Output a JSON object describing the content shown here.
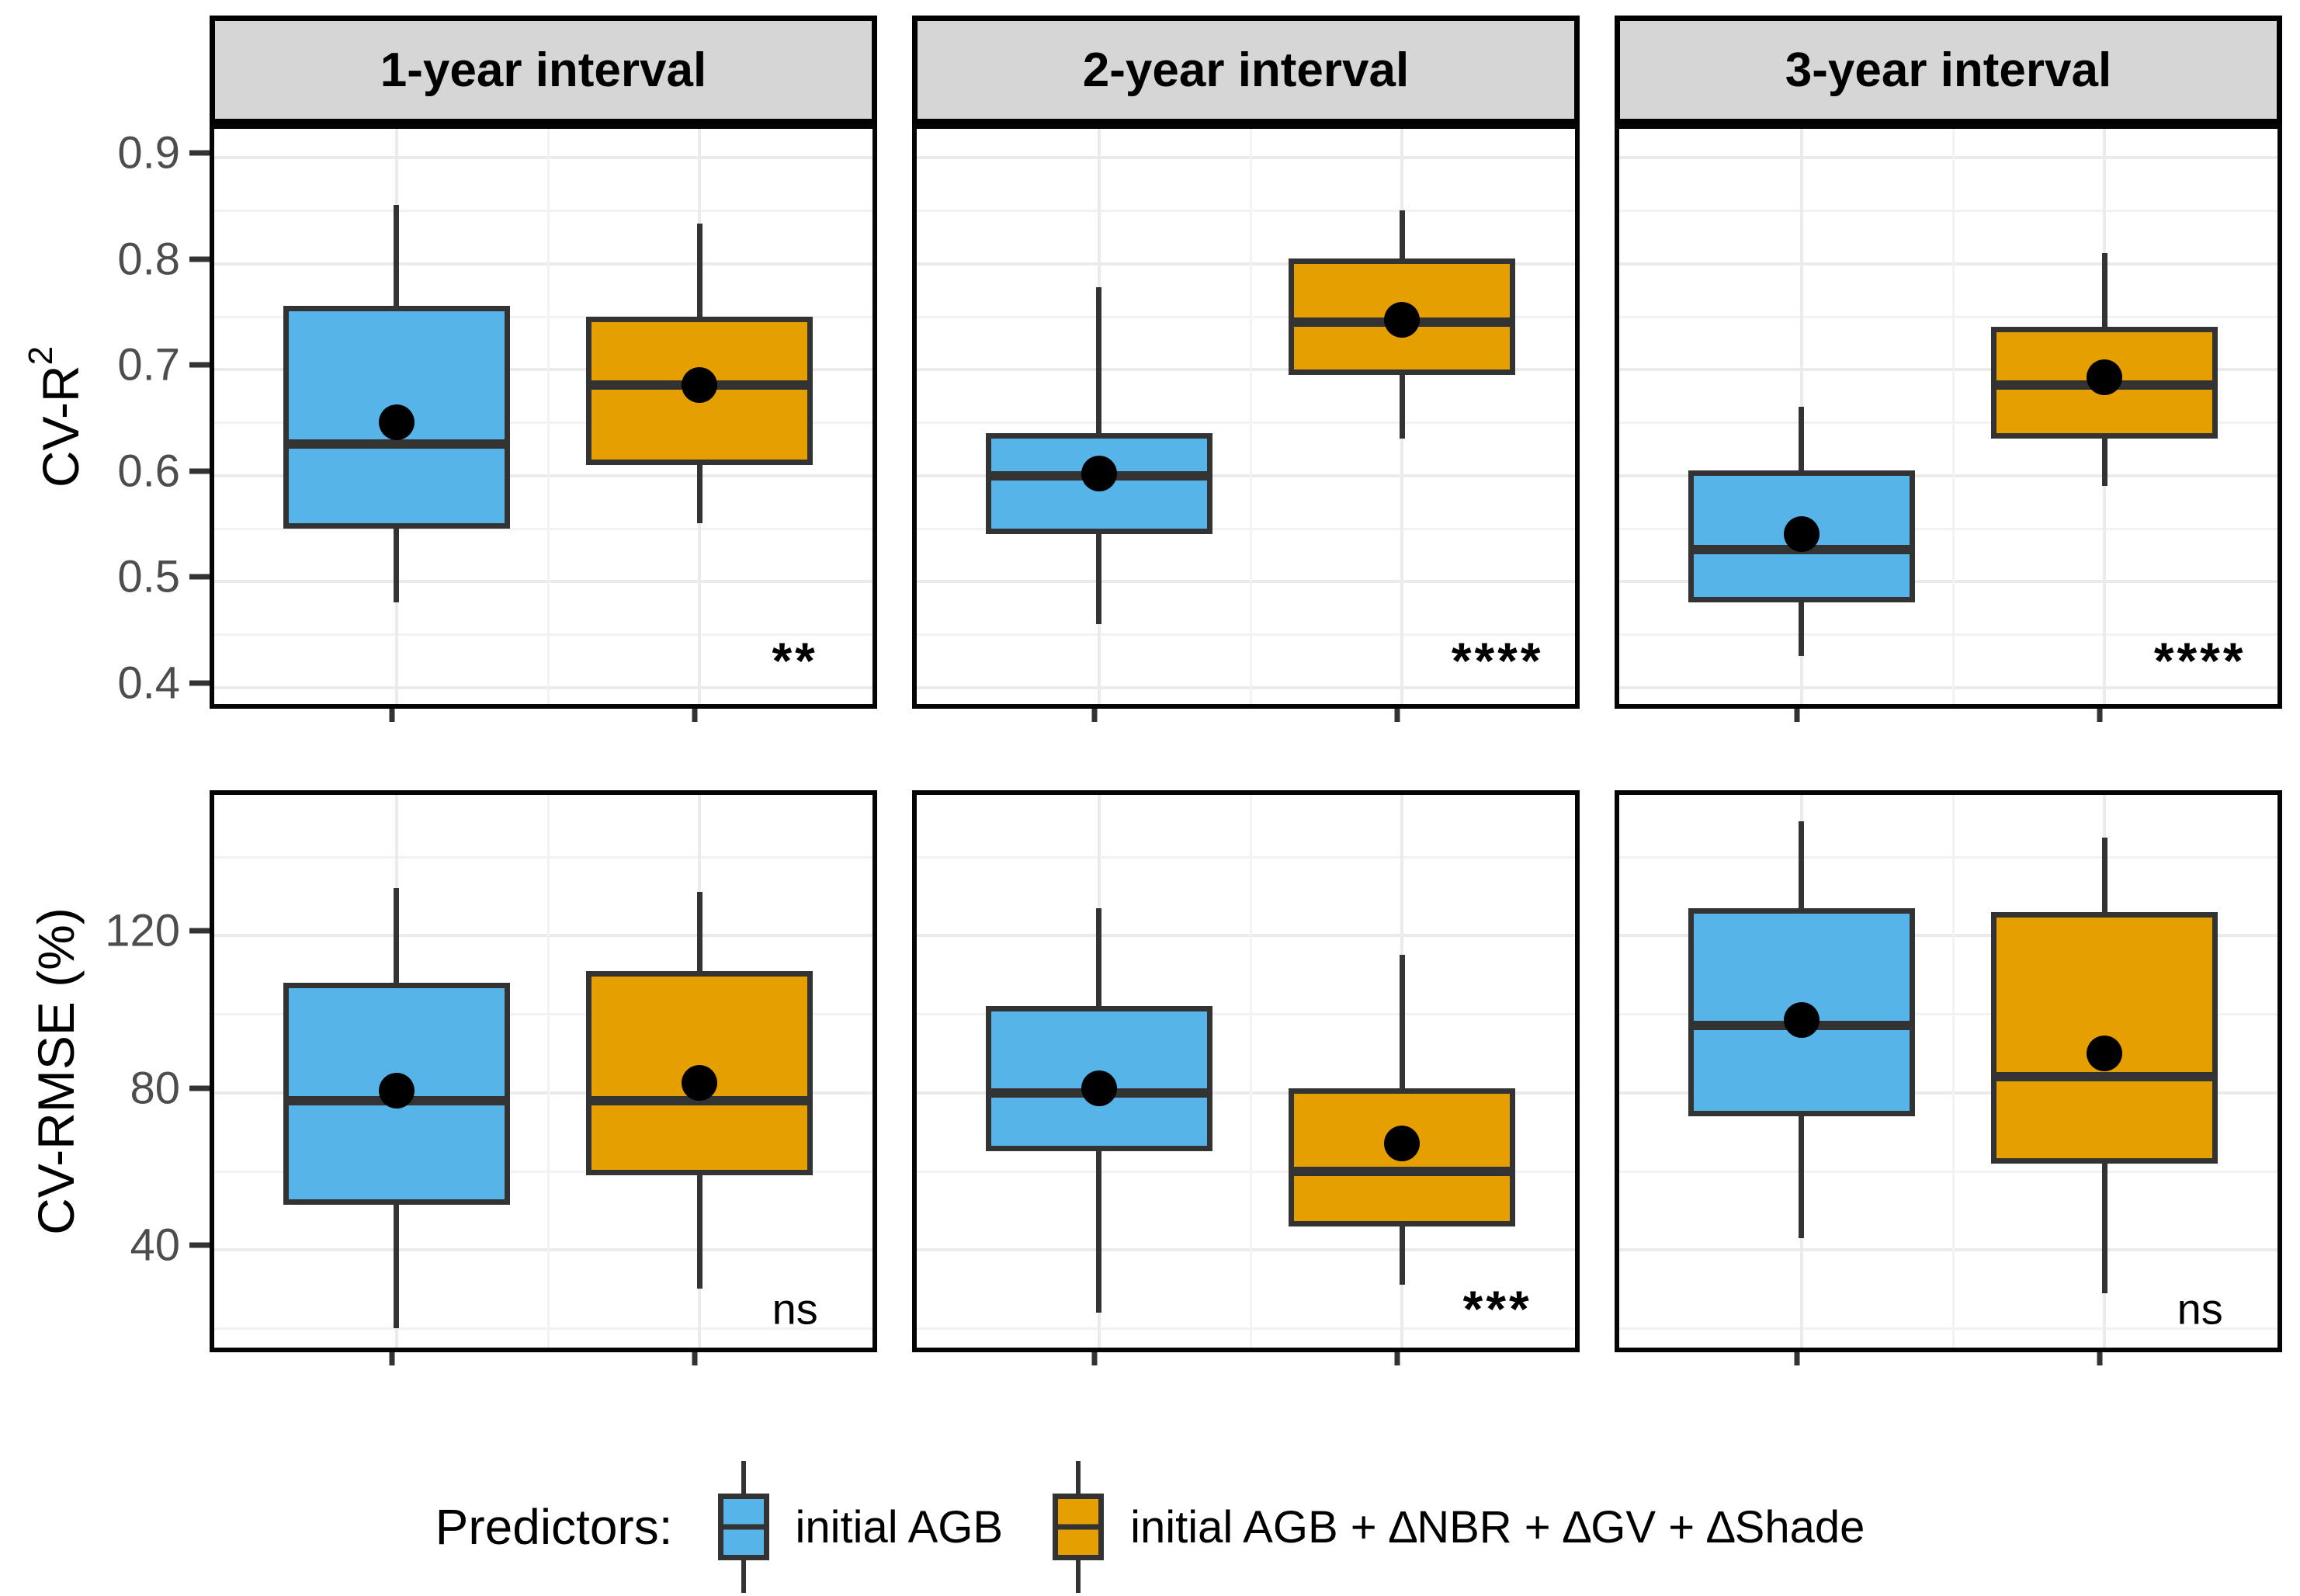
{
  "chart_data": {
    "type": "boxplot",
    "title": "",
    "grid": "on",
    "legend_position": "bottom",
    "facets": [
      "1-year interval",
      "2-year interval",
      "3-year interval"
    ],
    "series": [
      {
        "name": "initial AGB",
        "color": "#56B4E9"
      },
      {
        "name": "initial AGB + ∆NBR + ∆GV + ∆Shade",
        "color": "#E69F00"
      }
    ],
    "axes": {
      "top": {
        "label_base": "CV-R",
        "label_sup": "2",
        "ticks": [
          0.9,
          0.8,
          0.7,
          0.6,
          0.5,
          0.4
        ],
        "minor_ticks": [
          0.85,
          0.75,
          0.65,
          0.55,
          0.45
        ],
        "domain_top": 0.9271,
        "domain_bottom": 0.3755,
        "sig_value": 0.425
      },
      "bottom": {
        "label": "CV-RMSE (%)",
        "ticks": [
          120,
          80,
          40
        ],
        "minor_ticks": [
          140,
          100,
          60,
          20
        ],
        "domain_top": 155.8,
        "domain_bottom": 12.7,
        "sig_value": 25
      }
    },
    "panels": [
      {
        "row": 0,
        "col": 0,
        "metric": "CV-R2",
        "facet": "1-year interval",
        "significance": "**",
        "boxes": [
          {
            "series": 0,
            "whislo": 0.48,
            "q1": 0.55,
            "med": 0.63,
            "mean": 0.65,
            "q3": 0.76,
            "whishi": 0.855
          },
          {
            "series": 1,
            "whislo": 0.555,
            "q1": 0.61,
            "med": 0.685,
            "mean": 0.685,
            "q3": 0.75,
            "whishi": 0.838
          }
        ]
      },
      {
        "row": 0,
        "col": 1,
        "metric": "CV-R2",
        "facet": "2-year interval",
        "significance": "****",
        "boxes": [
          {
            "series": 0,
            "whislo": 0.46,
            "q1": 0.545,
            "med": 0.6,
            "mean": 0.602,
            "q3": 0.64,
            "whishi": 0.778
          },
          {
            "series": 1,
            "whislo": 0.635,
            "q1": 0.695,
            "med": 0.745,
            "mean": 0.747,
            "q3": 0.805,
            "whishi": 0.85
          }
        ]
      },
      {
        "row": 0,
        "col": 2,
        "metric": "CV-R2",
        "facet": "3-year interval",
        "significance": "****",
        "boxes": [
          {
            "series": 0,
            "whislo": 0.43,
            "q1": 0.48,
            "med": 0.53,
            "mean": 0.545,
            "q3": 0.605,
            "whishi": 0.665
          },
          {
            "series": 1,
            "whislo": 0.59,
            "q1": 0.635,
            "med": 0.685,
            "mean": 0.693,
            "q3": 0.74,
            "whishi": 0.81
          }
        ]
      },
      {
        "row": 1,
        "col": 0,
        "metric": "CV-RMSE",
        "facet": "1-year interval",
        "significance": "ns",
        "boxes": [
          {
            "series": 0,
            "whislo": 20,
            "q1": 51.5,
            "med": 78,
            "mean": 80.5,
            "q3": 108,
            "whishi": 132
          },
          {
            "series": 1,
            "whislo": 30,
            "q1": 59,
            "med": 78,
            "mean": 82.5,
            "q3": 111,
            "whishi": 131
          }
        ]
      },
      {
        "row": 1,
        "col": 1,
        "metric": "CV-RMSE",
        "facet": "2-year interval",
        "significance": "***",
        "boxes": [
          {
            "series": 0,
            "whislo": 24,
            "q1": 65,
            "med": 80,
            "mean": 81,
            "q3": 102,
            "whishi": 127
          },
          {
            "series": 1,
            "whislo": 31,
            "q1": 46,
            "med": 60,
            "mean": 67,
            "q3": 81,
            "whishi": 115
          }
        ]
      },
      {
        "row": 1,
        "col": 2,
        "metric": "CV-RMSE",
        "facet": "3-year interval",
        "significance": "ns",
        "boxes": [
          {
            "series": 0,
            "whislo": 43,
            "q1": 74,
            "med": 97,
            "mean": 98.5,
            "q3": 127,
            "whishi": 149
          },
          {
            "series": 1,
            "whislo": 29,
            "q1": 62,
            "med": 84,
            "mean": 90,
            "q3": 126,
            "whishi": 145
          }
        ]
      }
    ]
  },
  "legend": {
    "title": "Predictors:",
    "items": [
      {
        "label": "initial AGB",
        "color": "#56B4E9"
      },
      {
        "label": "initial AGB + ∆NBR + ∆GV + ∆Shade",
        "color": "#E69F00"
      }
    ]
  },
  "colors": {
    "blue": "#56B4E9",
    "orange": "#E69F00",
    "box_stroke": "#333333",
    "panel_border": "#050505",
    "strip_bg": "#D6D6D6",
    "grid_major": "#EBEBEB",
    "grid_minor": "#F2F2F2",
    "tick_label": "#4D4D4D"
  }
}
